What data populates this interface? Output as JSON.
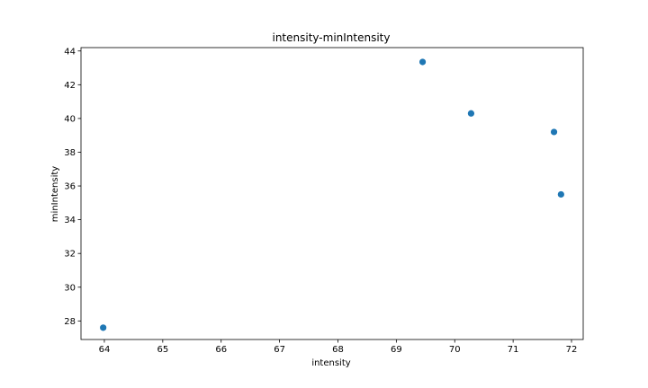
{
  "chart_data": {
    "type": "scatter",
    "title": "intensity-minIntensity",
    "xlabel": "intensity",
    "ylabel": "minIntensity",
    "xlim": [
      63.6,
      72.2
    ],
    "ylim": [
      26.9,
      44.2
    ],
    "xticks": [
      64,
      65,
      66,
      67,
      68,
      69,
      70,
      71,
      72
    ],
    "yticks": [
      28,
      30,
      32,
      34,
      36,
      38,
      40,
      42,
      44
    ],
    "grid": false,
    "series": [
      {
        "color": "#1f77b4",
        "points": [
          {
            "x": 63.98,
            "y": 27.6
          },
          {
            "x": 69.45,
            "y": 43.35
          },
          {
            "x": 70.28,
            "y": 40.3
          },
          {
            "x": 71.7,
            "y": 39.2
          },
          {
            "x": 71.82,
            "y": 35.5
          }
        ]
      }
    ]
  }
}
